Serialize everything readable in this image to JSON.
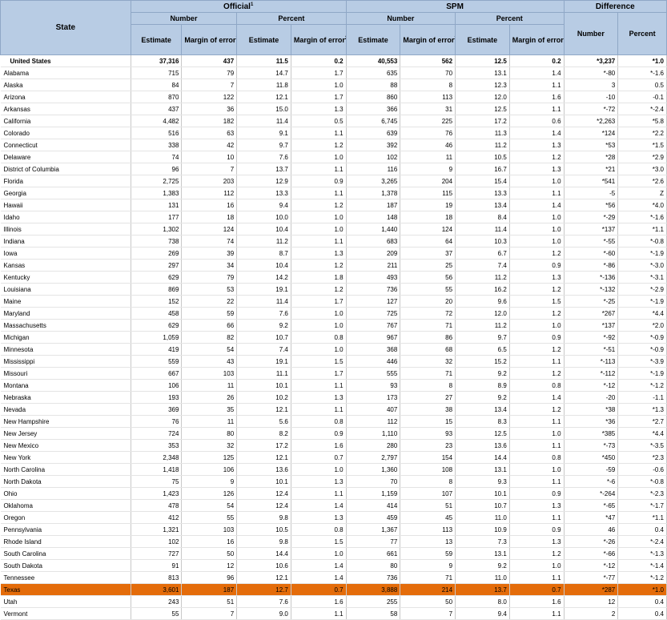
{
  "header": {
    "state": "State",
    "official": "Official",
    "official_sup": "1",
    "spm": "SPM",
    "difference": "Difference",
    "number": "Number",
    "percent": "Percent",
    "estimate": "Estimate",
    "moe": "Margin of error",
    "moe_sup": "2",
    "moe_suffix": "(±)"
  },
  "rows": [
    [
      "United States",
      "37,316",
      "437",
      "11.5",
      "0.2",
      "40,553",
      "562",
      "12.5",
      "0.2",
      "*3,237",
      "*1.0"
    ],
    [
      "Alabama",
      "715",
      "79",
      "14.7",
      "1.7",
      "635",
      "70",
      "13.1",
      "1.4",
      "*-80",
      "*-1.6"
    ],
    [
      "Alaska",
      "84",
      "7",
      "11.8",
      "1.0",
      "88",
      "8",
      "12.3",
      "1.1",
      "3",
      "0.5"
    ],
    [
      "Arizona",
      "870",
      "122",
      "12.1",
      "1.7",
      "860",
      "113",
      "12.0",
      "1.6",
      "-10",
      "-0.1"
    ],
    [
      "Arkansas",
      "437",
      "36",
      "15.0",
      "1.3",
      "366",
      "31",
      "12.5",
      "1.1",
      "*-72",
      "*-2.4"
    ],
    [
      "California",
      "4,482",
      "182",
      "11.4",
      "0.5",
      "6,745",
      "225",
      "17.2",
      "0.6",
      "*2,263",
      "*5.8"
    ],
    [
      "Colorado",
      "516",
      "63",
      "9.1",
      "1.1",
      "639",
      "76",
      "11.3",
      "1.4",
      "*124",
      "*2.2"
    ],
    [
      "Connecticut",
      "338",
      "42",
      "9.7",
      "1.2",
      "392",
      "46",
      "11.2",
      "1.3",
      "*53",
      "*1.5"
    ],
    [
      "Delaware",
      "74",
      "10",
      "7.6",
      "1.0",
      "102",
      "11",
      "10.5",
      "1.2",
      "*28",
      "*2.9"
    ],
    [
      "District of Columbia",
      "96",
      "7",
      "13.7",
      "1.1",
      "116",
      "9",
      "16.7",
      "1.3",
      "*21",
      "*3.0"
    ],
    [
      "Florida",
      "2,725",
      "203",
      "12.9",
      "0.9",
      "3,265",
      "204",
      "15.4",
      "1.0",
      "*541",
      "*2.6"
    ],
    [
      "Georgia",
      "1,383",
      "112",
      "13.3",
      "1.1",
      "1,378",
      "115",
      "13.3",
      "1.1",
      "-5",
      "Z"
    ],
    [
      "Hawaii",
      "131",
      "16",
      "9.4",
      "1.2",
      "187",
      "19",
      "13.4",
      "1.4",
      "*56",
      "*4.0"
    ],
    [
      "Idaho",
      "177",
      "18",
      "10.0",
      "1.0",
      "148",
      "18",
      "8.4",
      "1.0",
      "*-29",
      "*-1.6"
    ],
    [
      "Illinois",
      "1,302",
      "124",
      "10.4",
      "1.0",
      "1,440",
      "124",
      "11.4",
      "1.0",
      "*137",
      "*1.1"
    ],
    [
      "Indiana",
      "738",
      "74",
      "11.2",
      "1.1",
      "683",
      "64",
      "10.3",
      "1.0",
      "*-55",
      "*-0.8"
    ],
    [
      "Iowa",
      "269",
      "39",
      "8.7",
      "1.3",
      "209",
      "37",
      "6.7",
      "1.2",
      "*-60",
      "*-1.9"
    ],
    [
      "Kansas",
      "297",
      "34",
      "10.4",
      "1.2",
      "211",
      "25",
      "7.4",
      "0.9",
      "*-86",
      "*-3.0"
    ],
    [
      "Kentucky",
      "629",
      "79",
      "14.2",
      "1.8",
      "493",
      "56",
      "11.2",
      "1.3",
      "*-136",
      "*-3.1"
    ],
    [
      "Louisiana",
      "869",
      "53",
      "19.1",
      "1.2",
      "736",
      "55",
      "16.2",
      "1.2",
      "*-132",
      "*-2.9"
    ],
    [
      "Maine",
      "152",
      "22",
      "11.4",
      "1.7",
      "127",
      "20",
      "9.6",
      "1.5",
      "*-25",
      "*-1.9"
    ],
    [
      "Maryland",
      "458",
      "59",
      "7.6",
      "1.0",
      "725",
      "72",
      "12.0",
      "1.2",
      "*267",
      "*4.4"
    ],
    [
      "Massachusetts",
      "629",
      "66",
      "9.2",
      "1.0",
      "767",
      "71",
      "11.2",
      "1.0",
      "*137",
      "*2.0"
    ],
    [
      "Michigan",
      "1,059",
      "82",
      "10.7",
      "0.8",
      "967",
      "86",
      "9.7",
      "0.9",
      "*-92",
      "*-0.9"
    ],
    [
      "Minnesota",
      "419",
      "54",
      "7.4",
      "1.0",
      "368",
      "68",
      "6.5",
      "1.2",
      "*-51",
      "*-0.9"
    ],
    [
      "Mississippi",
      "559",
      "43",
      "19.1",
      "1.5",
      "446",
      "32",
      "15.2",
      "1.1",
      "*-113",
      "*-3.9"
    ],
    [
      "Missouri",
      "667",
      "103",
      "11.1",
      "1.7",
      "555",
      "71",
      "9.2",
      "1.2",
      "*-112",
      "*-1.9"
    ],
    [
      "Montana",
      "106",
      "11",
      "10.1",
      "1.1",
      "93",
      "8",
      "8.9",
      "0.8",
      "*-12",
      "*-1.2"
    ],
    [
      "Nebraska",
      "193",
      "26",
      "10.2",
      "1.3",
      "173",
      "27",
      "9.2",
      "1.4",
      "-20",
      "-1.1"
    ],
    [
      "Nevada",
      "369",
      "35",
      "12.1",
      "1.1",
      "407",
      "38",
      "13.4",
      "1.2",
      "*38",
      "*1.3"
    ],
    [
      "New Hampshire",
      "76",
      "11",
      "5.6",
      "0.8",
      "112",
      "15",
      "8.3",
      "1.1",
      "*36",
      "*2.7"
    ],
    [
      "New Jersey",
      "724",
      "80",
      "8.2",
      "0.9",
      "1,110",
      "93",
      "12.5",
      "1.0",
      "*385",
      "*4.4"
    ],
    [
      "New Mexico",
      "353",
      "32",
      "17.2",
      "1.6",
      "280",
      "23",
      "13.6",
      "1.1",
      "*-73",
      "*-3.5"
    ],
    [
      "New York",
      "2,348",
      "125",
      "12.1",
      "0.7",
      "2,797",
      "154",
      "14.4",
      "0.8",
      "*450",
      "*2.3"
    ],
    [
      "North Carolina",
      "1,418",
      "106",
      "13.6",
      "1.0",
      "1,360",
      "108",
      "13.1",
      "1.0",
      "-59",
      "-0.6"
    ],
    [
      "North Dakota",
      "75",
      "9",
      "10.1",
      "1.3",
      "70",
      "8",
      "9.3",
      "1.1",
      "*-6",
      "*-0.8"
    ],
    [
      "Ohio",
      "1,423",
      "126",
      "12.4",
      "1.1",
      "1,159",
      "107",
      "10.1",
      "0.9",
      "*-264",
      "*-2.3"
    ],
    [
      "Oklahoma",
      "478",
      "54",
      "12.4",
      "1.4",
      "414",
      "51",
      "10.7",
      "1.3",
      "*-65",
      "*-1.7"
    ],
    [
      "Oregon",
      "412",
      "55",
      "9.8",
      "1.3",
      "459",
      "45",
      "11.0",
      "1.1",
      "*47",
      "*1.1"
    ],
    [
      "Pennsylvania",
      "1,321",
      "103",
      "10.5",
      "0.8",
      "1,367",
      "113",
      "10.9",
      "0.9",
      "46",
      "0.4"
    ],
    [
      "Rhode Island",
      "102",
      "16",
      "9.8",
      "1.5",
      "77",
      "13",
      "7.3",
      "1.3",
      "*-26",
      "*-2.4"
    ],
    [
      "South Carolina",
      "727",
      "50",
      "14.4",
      "1.0",
      "661",
      "59",
      "13.1",
      "1.2",
      "*-66",
      "*-1.3"
    ],
    [
      "South Dakota",
      "91",
      "12",
      "10.6",
      "1.4",
      "80",
      "9",
      "9.2",
      "1.0",
      "*-12",
      "*-1.4"
    ],
    [
      "Tennessee",
      "813",
      "96",
      "12.1",
      "1.4",
      "736",
      "71",
      "11.0",
      "1.1",
      "*-77",
      "*-1.2"
    ],
    [
      "Texas",
      "3,601",
      "187",
      "12.7",
      "0.7",
      "3,888",
      "214",
      "13.7",
      "0.7",
      "*287",
      "*1.0"
    ],
    [
      "Utah",
      "243",
      "51",
      "7.6",
      "1.6",
      "255",
      "50",
      "8.0",
      "1.6",
      "12",
      "0.4"
    ],
    [
      "Vermont",
      "55",
      "7",
      "9.0",
      "1.1",
      "58",
      "7",
      "9.4",
      "1.1",
      "2",
      "0.4"
    ]
  ],
  "highlight_state": "Texas",
  "colors": {
    "header_bg": "#b8cce4",
    "highlight": "#e46c0a"
  }
}
